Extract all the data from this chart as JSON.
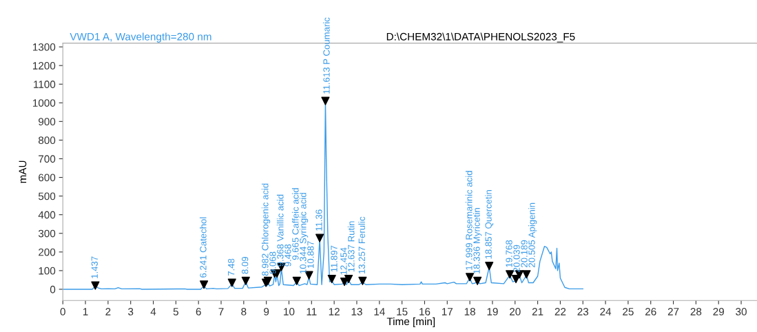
{
  "chart_data": {
    "type": "line",
    "title": "D:\\CHEM32\\1\\DATA\\PHENOLS2023_F5",
    "subtitle": "VWD1 A, Wavelength=280 nm",
    "xlabel": "Time [min]",
    "ylabel": "mAU",
    "xlim": [
      0,
      30.8
    ],
    "ylim": [
      -60,
      1320
    ],
    "xticks": [
      0,
      1,
      2,
      3,
      4,
      5,
      6,
      7,
      8,
      9,
      10,
      11,
      12,
      13,
      14,
      15,
      16,
      17,
      18,
      19,
      20,
      21,
      22,
      23,
      24,
      25,
      26,
      27,
      28,
      29,
      30
    ],
    "yticks": [
      0,
      100,
      200,
      300,
      400,
      500,
      600,
      700,
      800,
      900,
      1000,
      1100,
      1200,
      1300
    ],
    "grid": false,
    "legend": false,
    "series": [
      {
        "type": "line",
        "color": "#3a9be8",
        "marker": "none",
        "x": [
          0,
          1.3,
          1.4,
          1.45,
          1.55,
          1.7,
          2.0,
          2.3,
          2.45,
          2.6,
          3.4,
          3.5,
          5.4,
          5.5,
          6.1,
          6.24,
          6.35,
          6.65,
          6.8,
          7.3,
          7.48,
          7.6,
          7.95,
          8.09,
          8.2,
          8.8,
          8.98,
          9.03,
          9.07,
          9.15,
          9.3,
          9.37,
          9.42,
          9.47,
          9.55,
          9.6,
          9.665,
          9.75,
          10.2,
          10.344,
          10.45,
          10.7,
          10.8,
          10.887,
          10.95,
          11.25,
          11.36,
          11.45,
          11.55,
          11.613,
          11.65,
          11.72,
          11.8,
          11.897,
          12.0,
          12.35,
          12.454,
          12.55,
          12.637,
          12.75,
          13.1,
          13.257,
          13.4,
          14,
          14.5,
          15,
          15.8,
          15.85,
          15.9,
          16.5,
          16.9,
          17.0,
          17.3,
          17.4,
          17.85,
          17.999,
          18.1,
          18.2,
          18.336,
          18.45,
          18.7,
          18.857,
          18.95,
          19.5,
          19.768,
          19.9,
          20.039,
          20.189,
          20.3,
          20.505,
          20.6,
          20.8,
          21.0,
          21.1,
          21.3,
          21.4,
          21.55,
          21.6,
          21.65,
          21.8,
          21.85,
          21.88,
          21.95,
          22.0,
          22.2,
          22.4,
          23.0
        ],
        "values": [
          0,
          0,
          12,
          18,
          8,
          2,
          3,
          2,
          9,
          2,
          3,
          0,
          2,
          0,
          0,
          18,
          2,
          5,
          2,
          4,
          28,
          5,
          5,
          40,
          7,
          12,
          25,
          18,
          35,
          18,
          25,
          80,
          40,
          80,
          20,
          30,
          110,
          25,
          20,
          38,
          20,
          30,
          25,
          65,
          28,
          25,
          270,
          25,
          200,
          1010,
          700,
          280,
          40,
          45,
          25,
          28,
          35,
          25,
          50,
          25,
          25,
          38,
          25,
          28,
          28,
          25,
          28,
          40,
          28,
          28,
          35,
          30,
          38,
          30,
          30,
          60,
          30,
          32,
          40,
          30,
          35,
          120,
          35,
          30,
          75,
          40,
          45,
          75,
          35,
          75,
          35,
          35,
          70,
          150,
          230,
          225,
          190,
          200,
          150,
          110,
          220,
          100,
          140,
          60,
          10,
          2,
          2
        ]
      },
      {
        "type": "scatter",
        "color": "#000000",
        "marker": "triangle",
        "x": [
          1.437,
          6.241,
          7.48,
          8.09,
          8.982,
          9.068,
          9.368,
          9.468,
          9.665,
          10.344,
          10.887,
          11.36,
          11.613,
          11.897,
          12.454,
          12.637,
          13.257,
          17.999,
          18.336,
          18.857,
          19.768,
          20.039,
          20.189,
          20.505
        ],
        "values": [
          20,
          25,
          35,
          45,
          35,
          45,
          85,
          85,
          120,
          45,
          75,
          275,
          1010,
          55,
          40,
          55,
          45,
          65,
          45,
          125,
          80,
          55,
          80,
          80
        ]
      }
    ],
    "annotations": [
      {
        "text": "1.437",
        "x": 1.437,
        "y": 20
      },
      {
        "text": "6.241 Catechol",
        "x": 6.241,
        "y": 25
      },
      {
        "text": "7.48",
        "x": 7.48,
        "y": 35
      },
      {
        "text": "8.09",
        "x": 8.09,
        "y": 45
      },
      {
        "text": "8.982 Chlorogenic acid",
        "x": 8.982,
        "y": 35
      },
      {
        "text": "9.068",
        "x": 9.068,
        "y": 45
      },
      {
        "text": "9.368 Vanillic acid",
        "x": 9.368,
        "y": 85
      },
      {
        "text": "9.468",
        "x": 9.468,
        "y": 85
      },
      {
        "text": "9.665 Caffeic acid",
        "x": 9.665,
        "y": 120
      },
      {
        "text": "10.344 Syringic acid",
        "x": 10.344,
        "y": 45
      },
      {
        "text": "10.887",
        "x": 10.887,
        "y": 75
      },
      {
        "text": "11.36",
        "x": 11.36,
        "y": 275
      },
      {
        "text": "11.613 P Coumaric",
        "x": 11.613,
        "y": 1010
      },
      {
        "text": "11.897",
        "x": 11.897,
        "y": 55
      },
      {
        "text": "12.454",
        "x": 12.454,
        "y": 40
      },
      {
        "text": "12.637 Rutin",
        "x": 12.637,
        "y": 55
      },
      {
        "text": "13.257 Ferulic",
        "x": 13.257,
        "y": 45
      },
      {
        "text": "17.999 Rosemarinic acid",
        "x": 17.999,
        "y": 65
      },
      {
        "text": "18.336 Myricetin",
        "x": 18.336,
        "y": 45
      },
      {
        "text": "18.857 Quercetin",
        "x": 18.857,
        "y": 125
      },
      {
        "text": "19.768",
        "x": 19.768,
        "y": 80
      },
      {
        "text": "20.039",
        "x": 20.039,
        "y": 55
      },
      {
        "text": "20.189",
        "x": 20.189,
        "y": 80
      },
      {
        "text": "20.505 Apigenin",
        "x": 20.505,
        "y": 80
      }
    ]
  }
}
